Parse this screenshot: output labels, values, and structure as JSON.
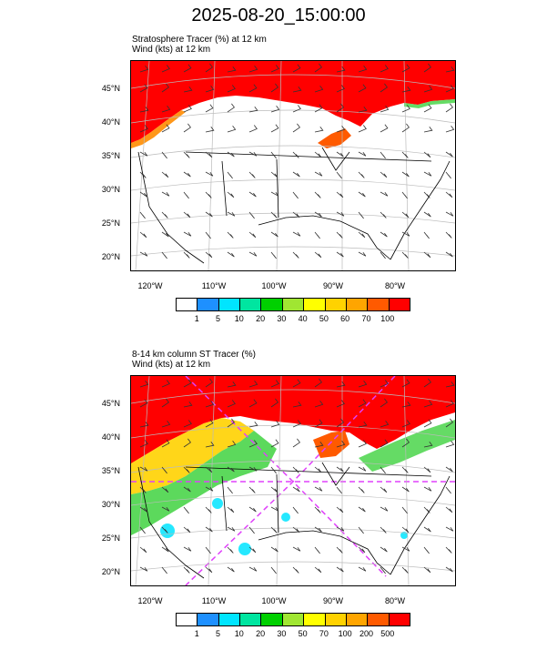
{
  "title": "2025-08-20_15:00:00",
  "panels": [
    {
      "field_line": "Stratosphere Tracer   (%)     at   12 km",
      "wind_line": "Wind   (kts)     at   12 km",
      "colorbar_labels": [
        "1",
        "5",
        "10",
        "20",
        "30",
        "40",
        "50",
        "60",
        "70",
        "100"
      ],
      "colorbar_colors": [
        "#ffffff",
        "#1e90ff",
        "#00e5ff",
        "#00e5a0",
        "#00d000",
        "#a0e632",
        "#ffff00",
        "#ffd200",
        "#ffa500",
        "#ff5a00",
        "#ff0000"
      ]
    },
    {
      "field_line": "8-14 km column ST Tracer    (%)",
      "wind_line": "Wind   (kts)     at   12 km",
      "colorbar_labels": [
        "1",
        "5",
        "10",
        "20",
        "30",
        "50",
        "70",
        "100",
        "200",
        "500"
      ],
      "colorbar_colors": [
        "#ffffff",
        "#1e90ff",
        "#00e5ff",
        "#00e5a0",
        "#00d000",
        "#a0e632",
        "#ffff00",
        "#ffd200",
        "#ffa500",
        "#ff5a00",
        "#ff0000"
      ]
    }
  ],
  "lat_labels": [
    "45°N",
    "40°N",
    "35°N",
    "30°N",
    "25°N",
    "20°N"
  ],
  "lon_labels": [
    "120°W",
    "110°W",
    "100°W",
    "90°W",
    "80°W"
  ]
}
